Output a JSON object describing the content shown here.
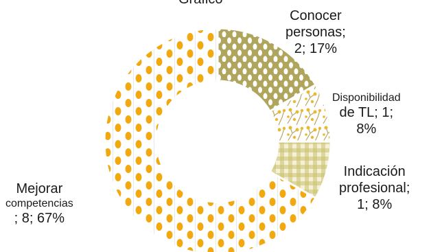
{
  "chart_data": {
    "type": "pie",
    "variant": "doughnut",
    "title": "Gráfico",
    "categories": [
      "Conocer personas",
      "Disponibilidad de TL",
      "Indicación profesional",
      "Mejorar competencias"
    ],
    "values": [
      2,
      1,
      1,
      8
    ],
    "percentages": [
      17,
      8,
      8,
      67
    ],
    "colors": [
      "#b0a55c",
      "#e8b92a",
      "#c8c070",
      "#f2a80f"
    ]
  },
  "labels": {
    "conocer": [
      "Conocer",
      "personas;",
      "2; 17%"
    ],
    "disponibilidad": [
      "Disponibilidad",
      "de TL; 1;",
      "8%"
    ],
    "indicacion": [
      "Indicación",
      "profesional;",
      "1; 8%"
    ],
    "mejorar": [
      "Mejorar",
      "competencias",
      "; 8; 67%"
    ]
  }
}
